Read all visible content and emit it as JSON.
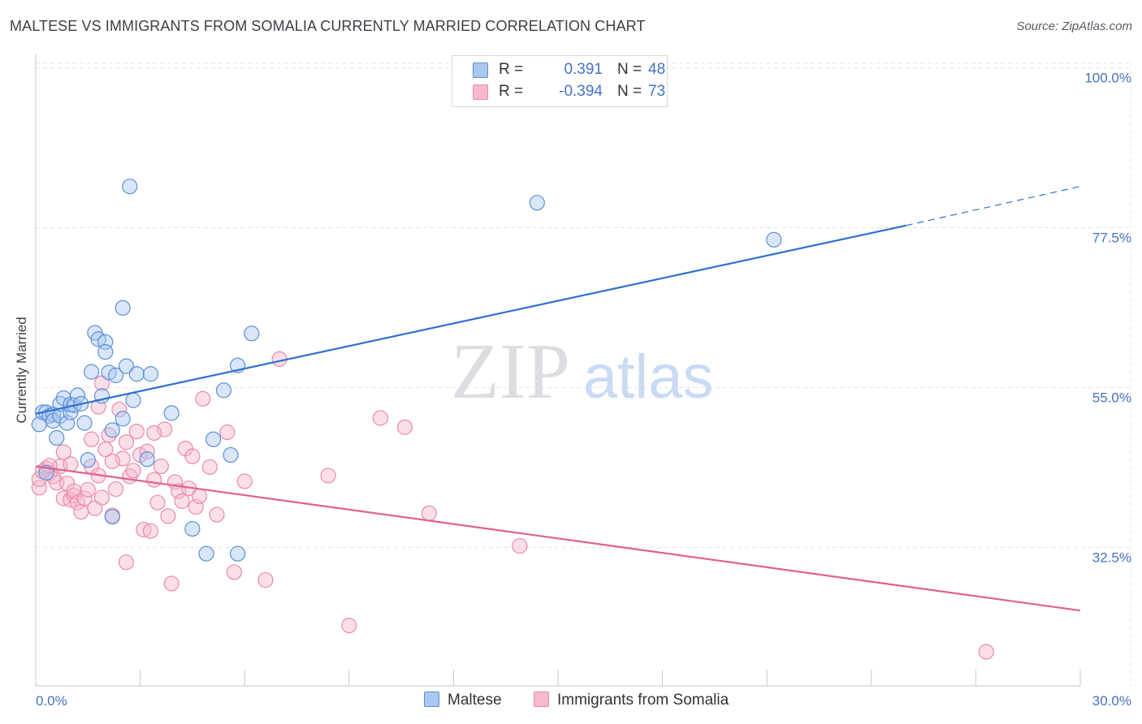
{
  "title": "MALTESE VS IMMIGRANTS FROM SOMALIA CURRENTLY MARRIED CORRELATION CHART",
  "source": "Source: ZipAtlas.com",
  "watermark": {
    "zip": "ZIP",
    "atlas": "atlas"
  },
  "colors": {
    "blue_fill": "#a9c8f0",
    "blue_stroke": "#5b8fd6",
    "blue_line": "#2f6fcf",
    "pink_fill": "#f6b9cd",
    "pink_stroke": "#e98aa9",
    "pink_line": "#e0608e",
    "tick_text": "#4472c4",
    "grid": "#dfe2e6"
  },
  "legend": {
    "rows": [
      {
        "r_label": "R =",
        "r_value": "0.391",
        "n_label": "N =",
        "n_value": "48"
      },
      {
        "r_label": "R =",
        "r_value": "-0.394",
        "n_label": "N =",
        "n_value": "73"
      }
    ]
  },
  "chart_data": {
    "type": "scatter",
    "title": "MALTESE VS IMMIGRANTS FROM SOMALIA CURRENTLY MARRIED CORRELATION CHART",
    "xlabel": "",
    "ylabel": "Currently Married",
    "xlim": [
      0,
      30
    ],
    "ylim": [
      13,
      102
    ],
    "x_tick_labels": [
      "0.0%",
      "30.0%"
    ],
    "y_ticks": [
      {
        "value": 32.5,
        "label": "32.5%"
      },
      {
        "value": 55.0,
        "label": "55.0%"
      },
      {
        "value": 77.5,
        "label": "77.5%"
      },
      {
        "value": 100.0,
        "label": "100.0%"
      }
    ],
    "grid": true,
    "legend_placement": "top-center",
    "series": [
      {
        "name": "Maltese",
        "trend": {
          "x0": 0,
          "y0": 51.3,
          "x1": 25.0,
          "y1": 77.8,
          "dashed_to_x": 30.0,
          "dashed_to_y": 83.3
        },
        "points": [
          [
            0.1,
            49.8
          ],
          [
            0.2,
            51.5
          ],
          [
            0.3,
            51.5
          ],
          [
            0.4,
            51.0
          ],
          [
            0.5,
            51.2
          ],
          [
            0.5,
            50.3
          ],
          [
            0.6,
            47.9
          ],
          [
            0.7,
            51.0
          ],
          [
            0.7,
            52.7
          ],
          [
            0.8,
            53.5
          ],
          [
            0.9,
            50.0
          ],
          [
            1.0,
            51.5
          ],
          [
            1.0,
            52.6
          ],
          [
            1.1,
            52.5
          ],
          [
            1.2,
            53.9
          ],
          [
            1.3,
            52.7
          ],
          [
            1.4,
            50.0
          ],
          [
            1.5,
            44.8
          ],
          [
            1.6,
            57.2
          ],
          [
            1.7,
            62.7
          ],
          [
            1.8,
            61.8
          ],
          [
            1.9,
            53.8
          ],
          [
            2.0,
            61.4
          ],
          [
            2.0,
            60.0
          ],
          [
            2.1,
            57.1
          ],
          [
            2.2,
            36.8
          ],
          [
            2.3,
            56.7
          ],
          [
            2.5,
            66.2
          ],
          [
            2.5,
            50.6
          ],
          [
            2.6,
            58.0
          ],
          [
            2.7,
            83.3
          ],
          [
            2.8,
            53.2
          ],
          [
            2.9,
            56.9
          ],
          [
            3.3,
            56.9
          ],
          [
            3.9,
            51.4
          ],
          [
            4.5,
            35.1
          ],
          [
            4.9,
            31.6
          ],
          [
            5.1,
            47.7
          ],
          [
            5.4,
            54.6
          ],
          [
            5.6,
            45.5
          ],
          [
            5.8,
            58.1
          ],
          [
            5.8,
            31.6
          ],
          [
            6.2,
            62.6
          ],
          [
            14.4,
            81.0
          ],
          [
            21.2,
            75.8
          ],
          [
            0.3,
            43.0
          ],
          [
            2.2,
            49.0
          ],
          [
            3.2,
            44.9
          ]
        ]
      },
      {
        "name": "Immigrants from Somalia",
        "trend": {
          "x0": 0,
          "y0": 43.9,
          "x1": 30.0,
          "y1": 23.6
        },
        "points": [
          [
            0.1,
            40.9
          ],
          [
            0.1,
            42.1
          ],
          [
            0.3,
            43.6
          ],
          [
            0.4,
            43.0
          ],
          [
            0.5,
            42.5
          ],
          [
            0.6,
            41.6
          ],
          [
            0.7,
            43.9
          ],
          [
            0.8,
            39.4
          ],
          [
            0.8,
            45.9
          ],
          [
            0.9,
            41.5
          ],
          [
            1.0,
            39.2
          ],
          [
            1.1,
            39.8
          ],
          [
            1.1,
            40.4
          ],
          [
            1.2,
            38.8
          ],
          [
            1.3,
            37.5
          ],
          [
            1.4,
            39.4
          ],
          [
            1.5,
            40.6
          ],
          [
            1.6,
            43.9
          ],
          [
            1.6,
            47.7
          ],
          [
            1.7,
            38.0
          ],
          [
            1.8,
            42.6
          ],
          [
            1.9,
            39.5
          ],
          [
            2.0,
            46.3
          ],
          [
            2.1,
            48.3
          ],
          [
            2.2,
            37.0
          ],
          [
            2.3,
            40.7
          ],
          [
            2.4,
            51.9
          ],
          [
            2.5,
            45.0
          ],
          [
            2.6,
            47.3
          ],
          [
            2.6,
            30.4
          ],
          [
            2.7,
            42.5
          ],
          [
            2.8,
            43.3
          ],
          [
            2.9,
            48.8
          ],
          [
            3.0,
            45.5
          ],
          [
            3.1,
            35.0
          ],
          [
            3.2,
            46.0
          ],
          [
            3.3,
            34.8
          ],
          [
            3.4,
            42.0
          ],
          [
            3.5,
            38.8
          ],
          [
            3.6,
            43.9
          ],
          [
            3.7,
            49.1
          ],
          [
            3.8,
            36.9
          ],
          [
            3.9,
            27.4
          ],
          [
            4.0,
            41.7
          ],
          [
            4.1,
            40.4
          ],
          [
            4.2,
            39.0
          ],
          [
            4.3,
            46.4
          ],
          [
            4.4,
            40.8
          ],
          [
            4.5,
            45.3
          ],
          [
            4.6,
            38.2
          ],
          [
            4.7,
            39.7
          ],
          [
            4.8,
            53.4
          ],
          [
            5.0,
            43.8
          ],
          [
            5.5,
            48.7
          ],
          [
            5.7,
            29.0
          ],
          [
            6.0,
            41.8
          ],
          [
            6.6,
            27.9
          ],
          [
            7.0,
            59.0
          ],
          [
            8.4,
            42.6
          ],
          [
            9.0,
            21.5
          ],
          [
            9.9,
            50.7
          ],
          [
            10.6,
            49.4
          ],
          [
            11.3,
            37.3
          ],
          [
            13.9,
            32.7
          ],
          [
            27.3,
            17.8
          ],
          [
            0.2,
            43.2
          ],
          [
            0.4,
            44.0
          ],
          [
            1.0,
            44.2
          ],
          [
            1.9,
            55.6
          ],
          [
            2.2,
            44.6
          ],
          [
            3.4,
            48.6
          ],
          [
            5.2,
            37.1
          ],
          [
            1.8,
            52.3
          ]
        ]
      }
    ]
  }
}
